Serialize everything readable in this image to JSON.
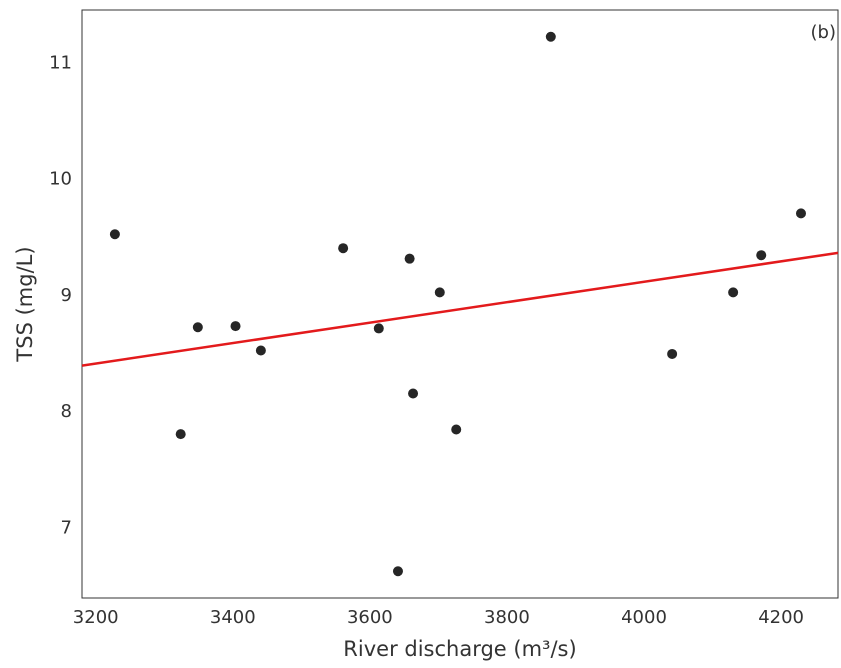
{
  "chart_data": {
    "type": "scatter",
    "annotation": "(b)",
    "x_label": "River discharge (m³/s)",
    "y_label": "TSS (mg/L)",
    "xlim": [
      3180,
      4283
    ],
    "ylim": [
      6.4,
      11.46
    ],
    "xticks": [
      3200,
      3400,
      3600,
      3800,
      4000,
      4200
    ],
    "yticks": [
      7,
      8,
      9,
      10,
      11
    ],
    "series": [
      {
        "type": "scatter",
        "color": "#262626",
        "x": [
          3228,
          3324,
          3349,
          3404,
          3441,
          3561,
          3613,
          3641,
          3658,
          3663,
          3702,
          3726,
          3864,
          4041,
          4130,
          4171,
          4229
        ],
        "values": [
          9.53,
          7.81,
          8.73,
          8.74,
          8.53,
          9.41,
          8.72,
          6.63,
          9.32,
          8.16,
          9.03,
          7.85,
          11.23,
          8.5,
          9.03,
          9.35,
          9.71
        ]
      },
      {
        "type": "line",
        "color": "#e31a1c",
        "x": [
          3180,
          4283
        ],
        "values": [
          8.4,
          9.37
        ]
      }
    ]
  }
}
